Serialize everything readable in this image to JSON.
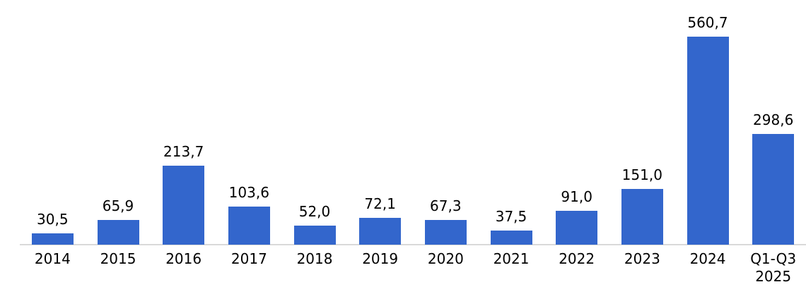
{
  "chart_data": {
    "type": "bar",
    "title": "",
    "xlabel": "",
    "ylabel": "",
    "categories": [
      "2014",
      "2015",
      "2016",
      "2017",
      "2018",
      "2019",
      "2020",
      "2021",
      "2022",
      "2023",
      "2024",
      "Q1-Q3\n2025"
    ],
    "values": [
      30.5,
      65.9,
      213.7,
      103.6,
      52.0,
      72.1,
      67.3,
      37.5,
      91.0,
      151.0,
      560.7,
      298.6
    ],
    "value_labels": [
      "30,5",
      "65,9",
      "213,7",
      "103,6",
      "52,0",
      "72,1",
      "67,3",
      "37,5",
      "91,0",
      "151,0",
      "560,7",
      "298,6"
    ],
    "decimal_separator": ",",
    "ylim": [
      0,
      660
    ],
    "grid": false,
    "legend": false,
    "data_labels_position": "above-bars",
    "bar_color": "#3366CC",
    "axis_line_color": "#D9D9D9",
    "text_color": "#000000",
    "background_color": "#FFFFFF"
  }
}
